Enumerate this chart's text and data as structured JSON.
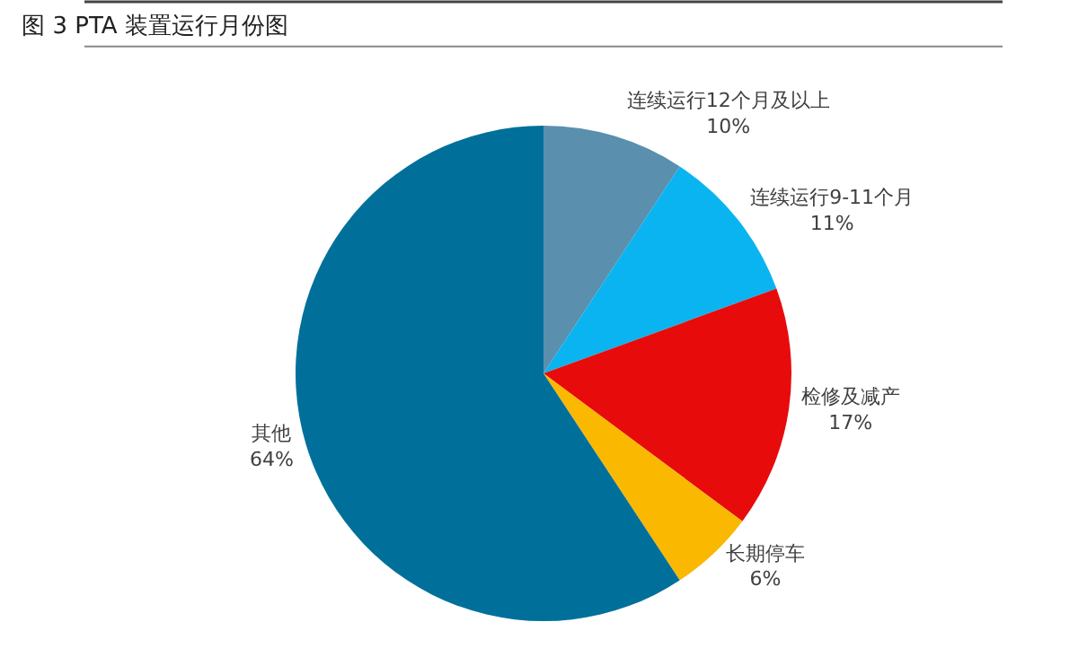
{
  "chart_data": {
    "type": "pie",
    "title": "图 3 PTA 装置运行月份图",
    "categories": [
      "连续运行12个月及以上",
      "连续运行9-11个月",
      "检修及减产",
      "长期停车",
      "其他"
    ],
    "values": [
      10,
      11,
      17,
      6,
      64
    ],
    "value_labels": [
      "10%",
      "11%",
      "17%",
      "6%",
      "64%"
    ],
    "colors": [
      "#5b8fae",
      "#0ab4f0",
      "#e80b0b",
      "#fbb800",
      "#00709b"
    ],
    "legend": false
  }
}
